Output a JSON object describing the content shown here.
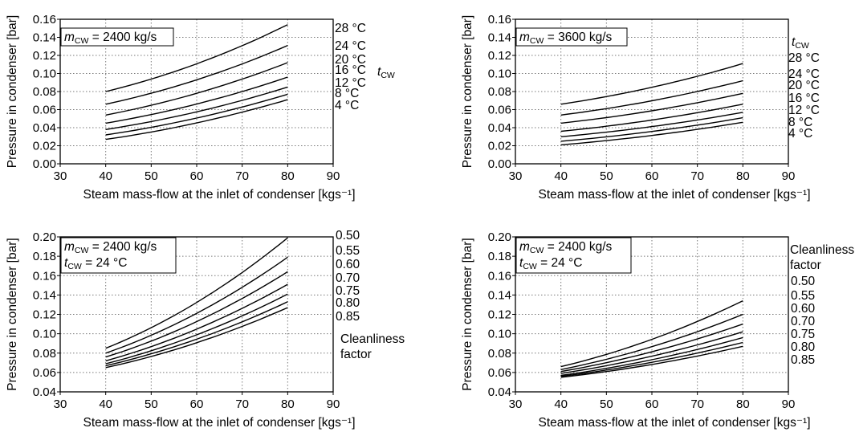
{
  "chart_data": [
    {
      "type": "line",
      "annotation_lines": [
        {
          "var": "m",
          "sub": "CW",
          "text": " = 2400 kg/s"
        }
      ],
      "legend_title": {
        "var": "t",
        "sub": "CW"
      },
      "xlabel": "Steam mass-flow at the inlet of condenser [kgs⁻¹]",
      "ylabel": "Pressure in condenser [bar]",
      "xlim": [
        30,
        90
      ],
      "ylim": [
        0.0,
        0.16
      ],
      "xticks": [
        "30",
        "40",
        "50",
        "60",
        "70",
        "80",
        "90"
      ],
      "yticks": [
        "0.00",
        "0.02",
        "0.04",
        "0.06",
        "0.08",
        "0.10",
        "0.12",
        "0.14",
        "0.16"
      ],
      "grid": true,
      "x": [
        40,
        80
      ],
      "series": [
        {
          "name": "28 °C",
          "values": [
            0.08,
            0.154
          ]
        },
        {
          "name": "24 °C",
          "values": [
            0.066,
            0.131
          ]
        },
        {
          "name": "20 °C",
          "values": [
            0.054,
            0.112
          ]
        },
        {
          "name": "16 °C",
          "values": [
            0.045,
            0.096
          ]
        },
        {
          "name": "12 °C",
          "values": [
            0.038,
            0.085
          ]
        },
        {
          "name": "8 °C",
          "values": [
            0.032,
            0.077
          ]
        },
        {
          "name": "4 °C",
          "values": [
            0.027,
            0.071
          ]
        }
      ]
    },
    {
      "type": "line",
      "annotation_lines": [
        {
          "var": "m",
          "sub": "CW",
          "text": " = 3600 kg/s"
        }
      ],
      "legend_title": {
        "var": "t",
        "sub": "CW"
      },
      "xlabel": "Steam mass-flow at the inlet of condenser  [kgs⁻¹]",
      "ylabel": "Pressure in condenser [bar]",
      "xlim": [
        30,
        90
      ],
      "ylim": [
        0.0,
        0.16
      ],
      "xticks": [
        "30",
        "40",
        "50",
        "60",
        "70",
        "80",
        "90"
      ],
      "yticks": [
        "0.00",
        "0.02",
        "0.04",
        "0.06",
        "0.08",
        "0.10",
        "0.12",
        "0.14",
        "0.16"
      ],
      "grid": true,
      "x": [
        40,
        80
      ],
      "series": [
        {
          "name": "28 °C",
          "values": [
            0.066,
            0.111
          ]
        },
        {
          "name": "24 °C",
          "values": [
            0.054,
            0.092
          ]
        },
        {
          "name": "20 °C",
          "values": [
            0.045,
            0.078
          ]
        },
        {
          "name": "16 °C",
          "values": [
            0.036,
            0.066
          ]
        },
        {
          "name": "12 °C",
          "values": [
            0.03,
            0.057
          ]
        },
        {
          "name": "8 °C",
          "values": [
            0.025,
            0.051
          ]
        },
        {
          "name": "4 °C",
          "values": [
            0.021,
            0.046
          ]
        }
      ]
    },
    {
      "type": "line",
      "annotation_lines": [
        {
          "var": "m",
          "sub": "CW",
          "text": " = 2400 kg/s"
        },
        {
          "var": "t",
          "sub": "CW",
          "text": " = 24 °C"
        }
      ],
      "legend_title_lines": [
        "Cleanliness",
        "factor"
      ],
      "xlabel": "Steam mass-flow at the inlet of condenser  [kgs⁻¹]",
      "ylabel": "Pressure in condenser [bar]",
      "xlim": [
        30,
        90
      ],
      "ylim": [
        0.04,
        0.2
      ],
      "xticks": [
        "30",
        "40",
        "50",
        "60",
        "70",
        "80",
        "90"
      ],
      "yticks": [
        "0.04",
        "0.06",
        "0.08",
        "0.10",
        "0.12",
        "0.14",
        "0.16",
        "0.18",
        "0.20"
      ],
      "grid": true,
      "x": [
        40,
        80
      ],
      "series": [
        {
          "name": "0.50",
          "values": [
            0.085,
            0.199
          ]
        },
        {
          "name": "0.55",
          "values": [
            0.08,
            0.179
          ]
        },
        {
          "name": "0.60",
          "values": [
            0.076,
            0.164
          ]
        },
        {
          "name": "0.70",
          "values": [
            0.072,
            0.151
          ]
        },
        {
          "name": "0.75",
          "values": [
            0.069,
            0.141
          ]
        },
        {
          "name": "0.80",
          "values": [
            0.067,
            0.133
          ]
        },
        {
          "name": "0.85",
          "values": [
            0.065,
            0.127
          ]
        }
      ]
    },
    {
      "type": "line",
      "annotation_lines": [
        {
          "var": "m",
          "sub": "CW",
          "text": " = 2400 kg/s"
        },
        {
          "var": "t",
          "sub": "CW",
          "text": " = 24 °C"
        }
      ],
      "legend_title_lines": [
        "Cleanliness",
        "factor"
      ],
      "xlabel": "Steam mass-flow at the inlet of condenser  [kgs⁻¹]",
      "ylabel": "Pressure in condenser [bar]",
      "xlim": [
        30,
        90
      ],
      "ylim": [
        0.04,
        0.2
      ],
      "xticks": [
        "30",
        "40",
        "50",
        "60",
        "70",
        "80",
        "90"
      ],
      "yticks": [
        "0.04",
        "0.06",
        "0.08",
        "0.10",
        "0.12",
        "0.14",
        "0.16",
        "0.18",
        "0.20"
      ],
      "grid": true,
      "x": [
        40,
        80
      ],
      "series": [
        {
          "name": "0.50",
          "values": [
            0.066,
            0.134
          ]
        },
        {
          "name": "0.55",
          "values": [
            0.063,
            0.12
          ]
        },
        {
          "name": "0.60",
          "values": [
            0.061,
            0.11
          ]
        },
        {
          "name": "0.70",
          "values": [
            0.059,
            0.102
          ]
        },
        {
          "name": "0.75",
          "values": [
            0.057,
            0.096
          ]
        },
        {
          "name": "0.80",
          "values": [
            0.056,
            0.091
          ]
        },
        {
          "name": "0.85",
          "values": [
            0.055,
            0.087
          ]
        }
      ]
    }
  ]
}
